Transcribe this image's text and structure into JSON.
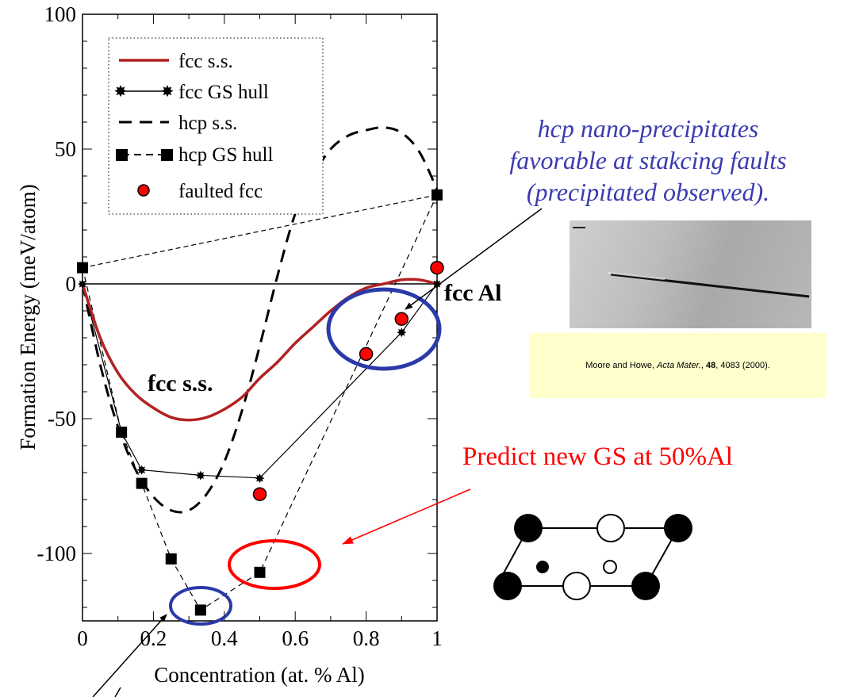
{
  "chart_data": {
    "type": "line",
    "xlabel": "Concentration (at. % Al)",
    "ylabel": "Formation Energy (meV/atom)",
    "xlim": [
      0,
      1
    ],
    "ylim": [
      -125,
      100
    ],
    "x_ticks": [
      "0",
      "0.2",
      "0.4",
      "0.6",
      "0.8",
      "1"
    ],
    "y_ticks": [
      "100",
      "50",
      "0",
      "-50",
      "-100"
    ],
    "legend_position": "top-left",
    "series": [
      {
        "name": "fcc s.s.",
        "style": "solid",
        "color": "#b22222",
        "x": [
          0,
          0.05,
          0.1,
          0.15,
          0.2,
          0.25,
          0.3,
          0.35,
          0.4,
          0.45,
          0.5,
          0.55,
          0.6,
          0.65,
          0.7,
          0.75,
          0.8,
          0.85,
          0.9,
          0.95,
          1.0
        ],
        "y": [
          0,
          -20,
          -33,
          -41,
          -46,
          -49.5,
          -50.5,
          -49.5,
          -46.5,
          -42,
          -35,
          -29,
          -22,
          -16,
          -10,
          -5,
          -1.5,
          0,
          1.5,
          1.5,
          0
        ]
      },
      {
        "name": "fcc GS hull",
        "style": "solid-star",
        "color": "#000000",
        "x": [
          0,
          0.11,
          0.167,
          0.333,
          0.5,
          0.9,
          1.0
        ],
        "y": [
          0,
          -55,
          -69,
          -71,
          -72,
          -18,
          0
        ]
      },
      {
        "name": "hcp s.s.",
        "style": "dashed",
        "color": "#000000",
        "x": [
          0,
          0.05,
          0.1,
          0.15,
          0.2,
          0.25,
          0.3,
          0.35,
          0.4,
          0.45,
          0.5,
          0.55,
          0.6,
          0.65,
          0.7,
          0.75,
          0.8,
          0.85,
          0.9,
          0.95,
          1.0
        ],
        "y": [
          0,
          -30,
          -53,
          -69,
          -79,
          -84,
          -84,
          -78,
          -66,
          -47,
          -23,
          3,
          26,
          40,
          50,
          55,
          57,
          58,
          56,
          49,
          35
        ]
      },
      {
        "name": "hcp GS hull",
        "style": "dashed-square",
        "color": "#000000",
        "x": [
          0,
          0.11,
          0.167,
          0.25,
          0.333,
          0.5,
          1.0
        ],
        "y": [
          6,
          -55,
          -74,
          -102,
          -121,
          -107,
          33
        ]
      },
      {
        "name": "faulted fcc",
        "style": "marker-circle",
        "color": "#ff0000",
        "x": [
          0.5,
          0.8,
          0.9,
          1.0
        ],
        "y": [
          -78,
          -26,
          -13,
          6
        ]
      }
    ],
    "annotations": [
      "fcc s.s.",
      "fcc Al"
    ]
  },
  "annotations": {
    "hcp_note_lines": [
      "hcp nano-precipitates",
      "favorable at stakcing faults",
      "(precipitated observed)."
    ],
    "predict_text": "Predict new GS at 50%Al",
    "citation": {
      "authors": "Moore and Howe, ",
      "journal": "Acta Mater.",
      "sep1": ", ",
      "volume": "48",
      "rest": ", 4083 (2000)."
    }
  }
}
